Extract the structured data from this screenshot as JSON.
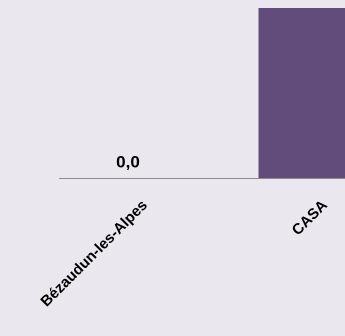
{
  "chart_data": {
    "type": "bar",
    "title": "",
    "xlabel": "",
    "ylabel": "",
    "categories": [
      "Bézaudun-les-Alpes",
      "CASA"
    ],
    "values": [
      0.0,
      100
    ],
    "data_labels": [
      "0,0",
      ""
    ],
    "ylim": [
      0,
      100
    ],
    "grid": false,
    "legend": "none",
    "colors": {
      "bar": "#624c7c",
      "axis": "#8c8c8c",
      "background": "#ebe7ef",
      "text": "#000000"
    }
  }
}
